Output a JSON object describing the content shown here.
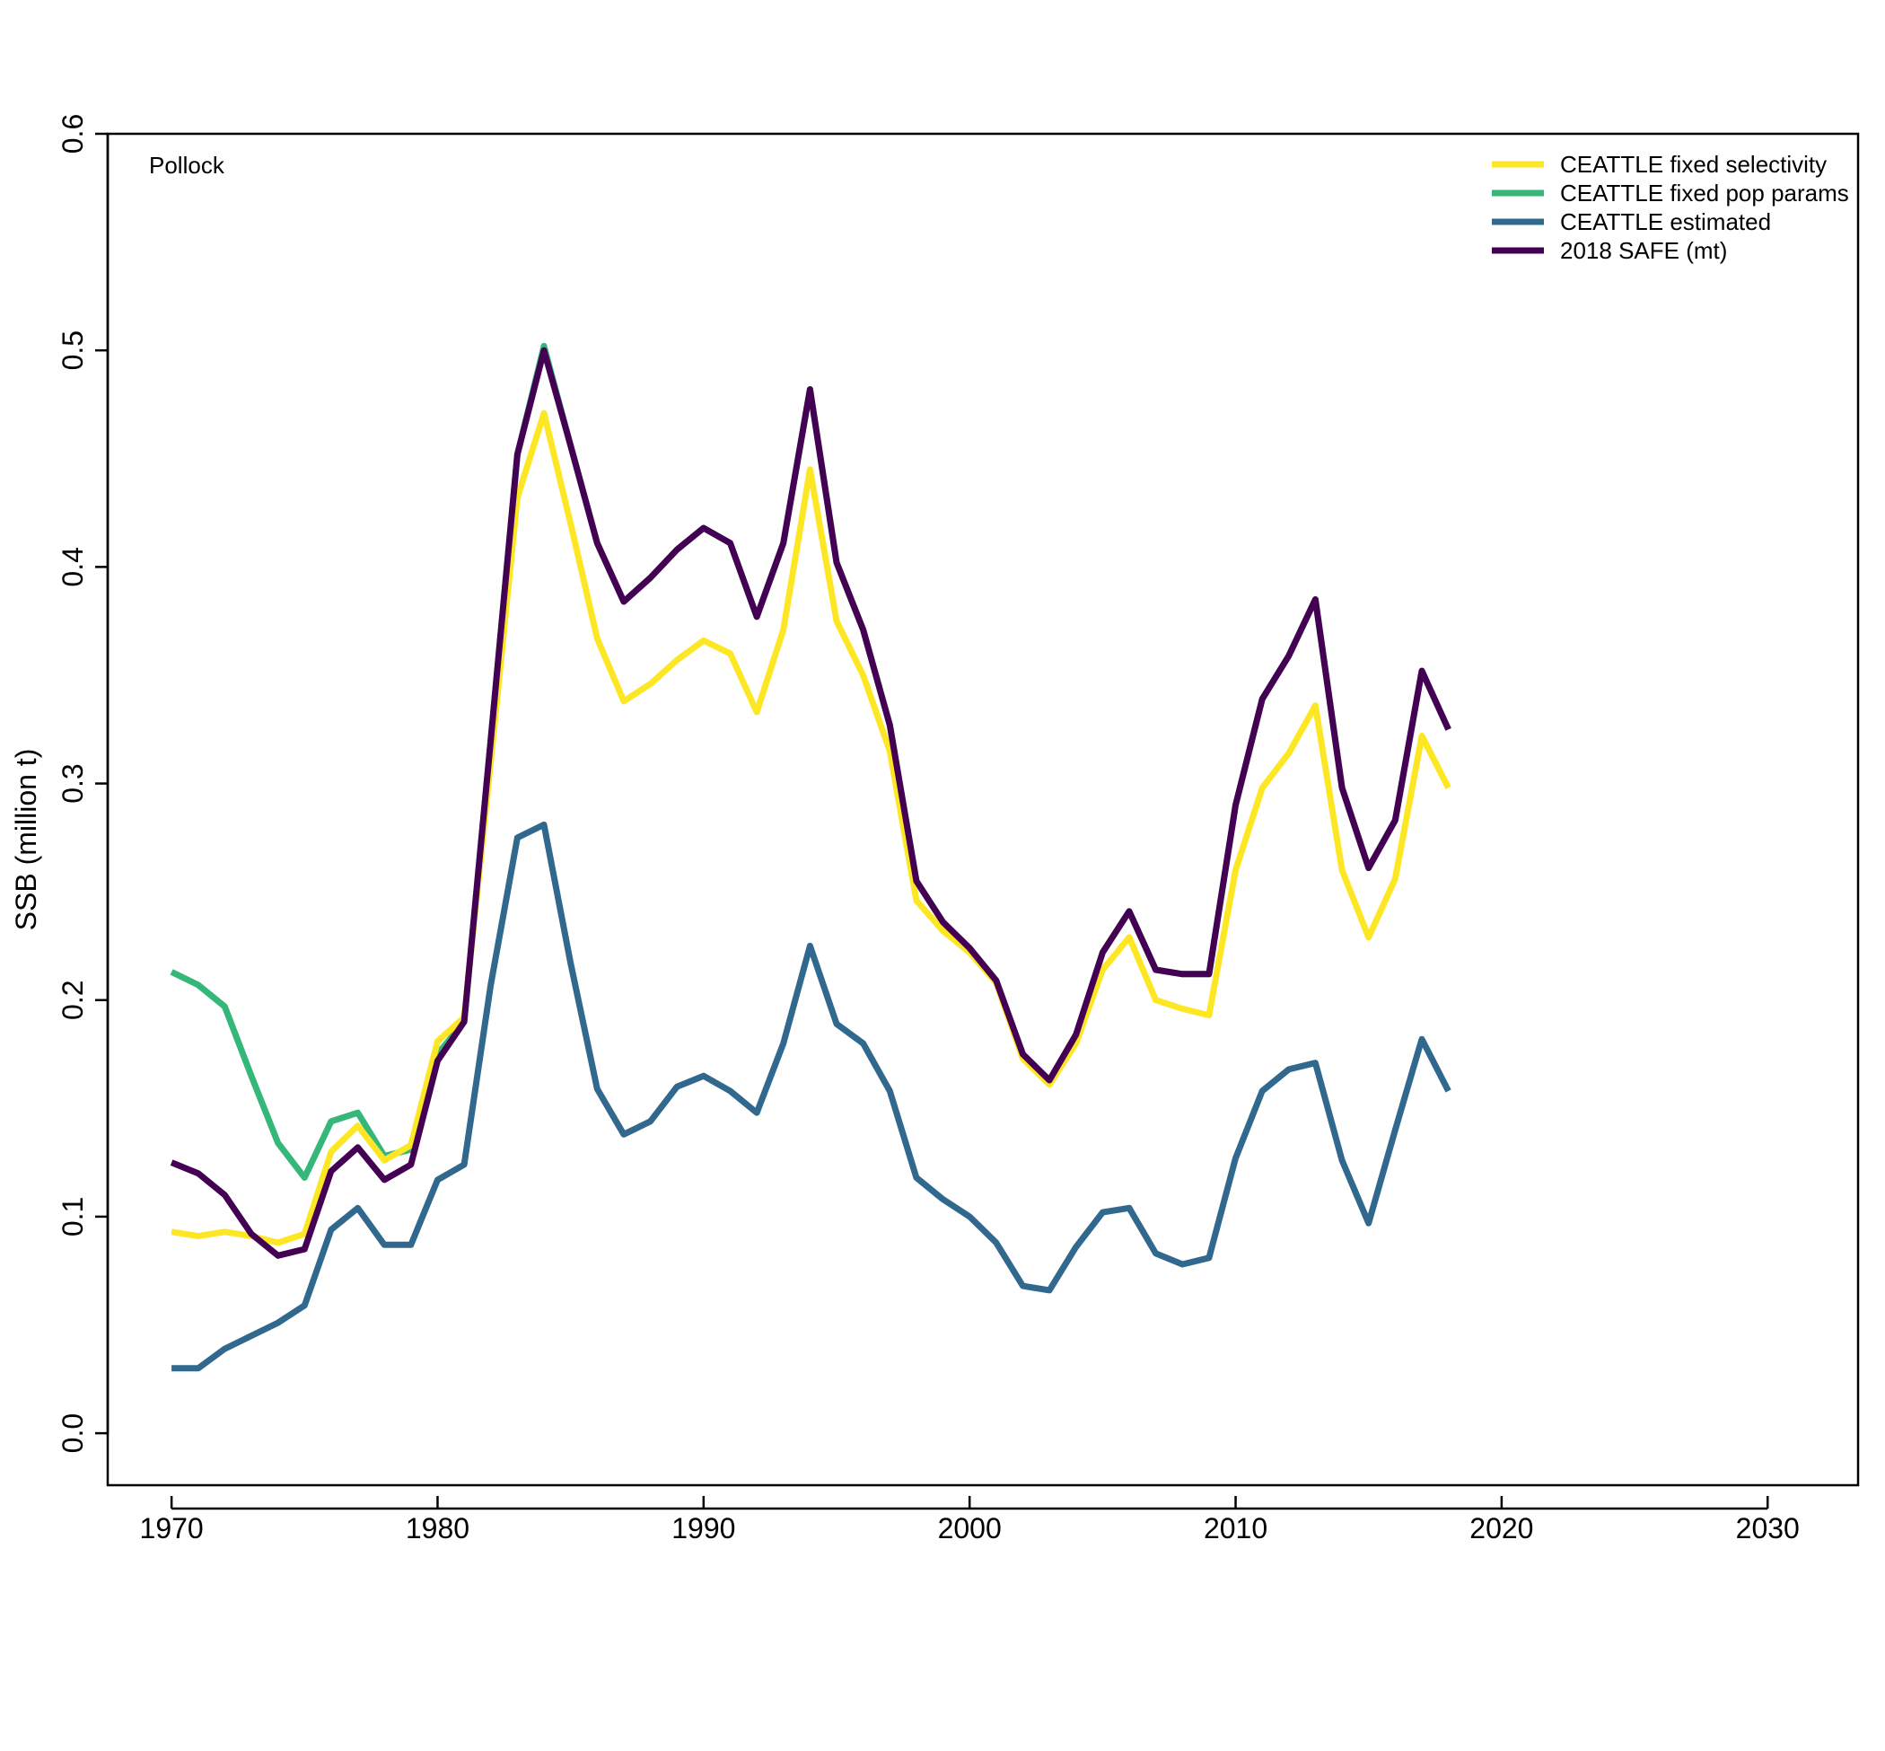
{
  "chart_data": {
    "type": "line",
    "panel_label": "Pollock",
    "ylabel": "SSB (million t)",
    "xlabel": "",
    "xlim": [
      1967.6,
      2033.4
    ],
    "ylim": [
      -0.024,
      0.6
    ],
    "xticks": [
      1970,
      1980,
      1990,
      2000,
      2010,
      2020,
      2030
    ],
    "yticks": [
      0.0,
      0.1,
      0.2,
      0.3,
      0.4,
      0.5,
      0.6
    ],
    "ytick_labels": [
      "0.0",
      "0.1",
      "0.2",
      "0.3",
      "0.4",
      "0.5",
      "0.6"
    ],
    "grid": false,
    "legend_position": "top-right",
    "x": [
      1970,
      1971,
      1972,
      1973,
      1974,
      1975,
      1976,
      1977,
      1978,
      1979,
      1980,
      1981,
      1982,
      1983,
      1984,
      1985,
      1986,
      1987,
      1988,
      1989,
      1990,
      1991,
      1992,
      1993,
      1994,
      1995,
      1996,
      1997,
      1998,
      1999,
      2000,
      2001,
      2002,
      2003,
      2004,
      2005,
      2006,
      2007,
      2008,
      2009,
      2010,
      2011,
      2012,
      2013,
      2014,
      2015,
      2016,
      2017,
      2018
    ],
    "series": [
      {
        "name": "CEATTLE fixed pop params",
        "color": "#35b779",
        "values": [
          0.213,
          0.207,
          0.197,
          0.165,
          0.134,
          0.118,
          0.144,
          0.148,
          0.128,
          0.131,
          0.175,
          0.19,
          0.32,
          0.452,
          0.502,
          0.456,
          0.411,
          0.384,
          0.395,
          0.408,
          0.418,
          0.411,
          0.377,
          0.411,
          0.482,
          0.402,
          0.371,
          0.327,
          0.255,
          0.236,
          0.224,
          0.209,
          0.175,
          0.163,
          0.184,
          0.222,
          0.241,
          0.214,
          0.212,
          0.212,
          0.29,
          0.339,
          0.359,
          0.385,
          0.298,
          0.261,
          0.283,
          0.352,
          0.325
        ]
      },
      {
        "name": "CEATTLE fixed selectivity",
        "color": "#fde725",
        "values": [
          0.093,
          0.091,
          0.093,
          0.091,
          0.088,
          0.092,
          0.13,
          0.142,
          0.126,
          0.133,
          0.181,
          0.192,
          0.31,
          0.432,
          0.471,
          0.42,
          0.367,
          0.338,
          0.346,
          0.357,
          0.366,
          0.36,
          0.333,
          0.371,
          0.445,
          0.375,
          0.35,
          0.315,
          0.246,
          0.232,
          0.222,
          0.208,
          0.173,
          0.161,
          0.18,
          0.214,
          0.229,
          0.2,
          0.196,
          0.193,
          0.26,
          0.298,
          0.314,
          0.336,
          0.26,
          0.229,
          0.256,
          0.322,
          0.298
        ]
      },
      {
        "name": "CEATTLE estimated",
        "color": "#31688e",
        "values": [
          0.03,
          0.03,
          0.039,
          0.045,
          0.051,
          0.059,
          0.094,
          0.104,
          0.087,
          0.087,
          0.117,
          0.124,
          0.207,
          0.275,
          0.281,
          0.217,
          0.159,
          0.138,
          0.144,
          0.16,
          0.165,
          0.158,
          0.148,
          0.18,
          0.225,
          0.189,
          0.18,
          0.158,
          0.118,
          0.108,
          0.1,
          0.088,
          0.068,
          0.066,
          0.086,
          0.102,
          0.104,
          0.083,
          0.078,
          0.081,
          0.127,
          0.158,
          0.168,
          0.171,
          0.126,
          0.097,
          0.14,
          0.182,
          0.158
        ]
      },
      {
        "name": "2018 SAFE (mt)",
        "color": "#440154",
        "values": [
          0.125,
          0.12,
          0.11,
          0.092,
          0.082,
          0.085,
          0.121,
          0.132,
          0.117,
          0.124,
          0.172,
          0.19,
          0.32,
          0.452,
          0.5,
          0.456,
          0.411,
          0.384,
          0.395,
          0.408,
          0.418,
          0.411,
          0.377,
          0.411,
          0.482,
          0.402,
          0.371,
          0.327,
          0.255,
          0.236,
          0.224,
          0.209,
          0.175,
          0.163,
          0.184,
          0.222,
          0.241,
          0.214,
          0.212,
          0.212,
          0.29,
          0.339,
          0.359,
          0.385,
          0.298,
          0.261,
          0.283,
          0.352,
          0.325
        ]
      }
    ],
    "legend": [
      {
        "label": "CEATTLE fixed selectivity",
        "color": "#fde725"
      },
      {
        "label": "CEATTLE fixed pop params",
        "color": "#35b779"
      },
      {
        "label": "CEATTLE estimated",
        "color": "#31688e"
      },
      {
        "label": "2018 SAFE (mt)",
        "color": "#440154"
      }
    ]
  }
}
